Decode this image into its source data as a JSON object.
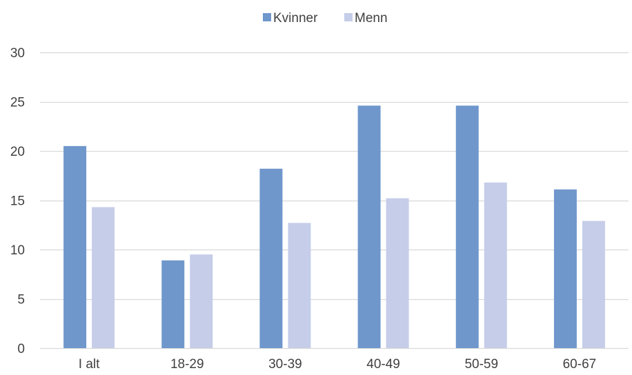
{
  "chart_data": {
    "type": "bar",
    "title": "",
    "xlabel": "",
    "ylabel": "",
    "categories": [
      "I alt",
      "18-29",
      "30-39",
      "40-49",
      "50-59",
      "60-67"
    ],
    "series": [
      {
        "name": "Kvinner",
        "color": "#6f97cc",
        "values": [
          20.5,
          8.9,
          18.2,
          24.6,
          24.6,
          16.1
        ]
      },
      {
        "name": "Menn",
        "color": "#c5cde9",
        "values": [
          14.3,
          9.5,
          12.7,
          15.2,
          16.8,
          12.9
        ]
      }
    ],
    "ylim": [
      0,
      30
    ],
    "yticks": [
      "0",
      "5",
      "10",
      "15",
      "20",
      "25",
      "30"
    ],
    "grid": true,
    "legend_position": "top-center"
  }
}
